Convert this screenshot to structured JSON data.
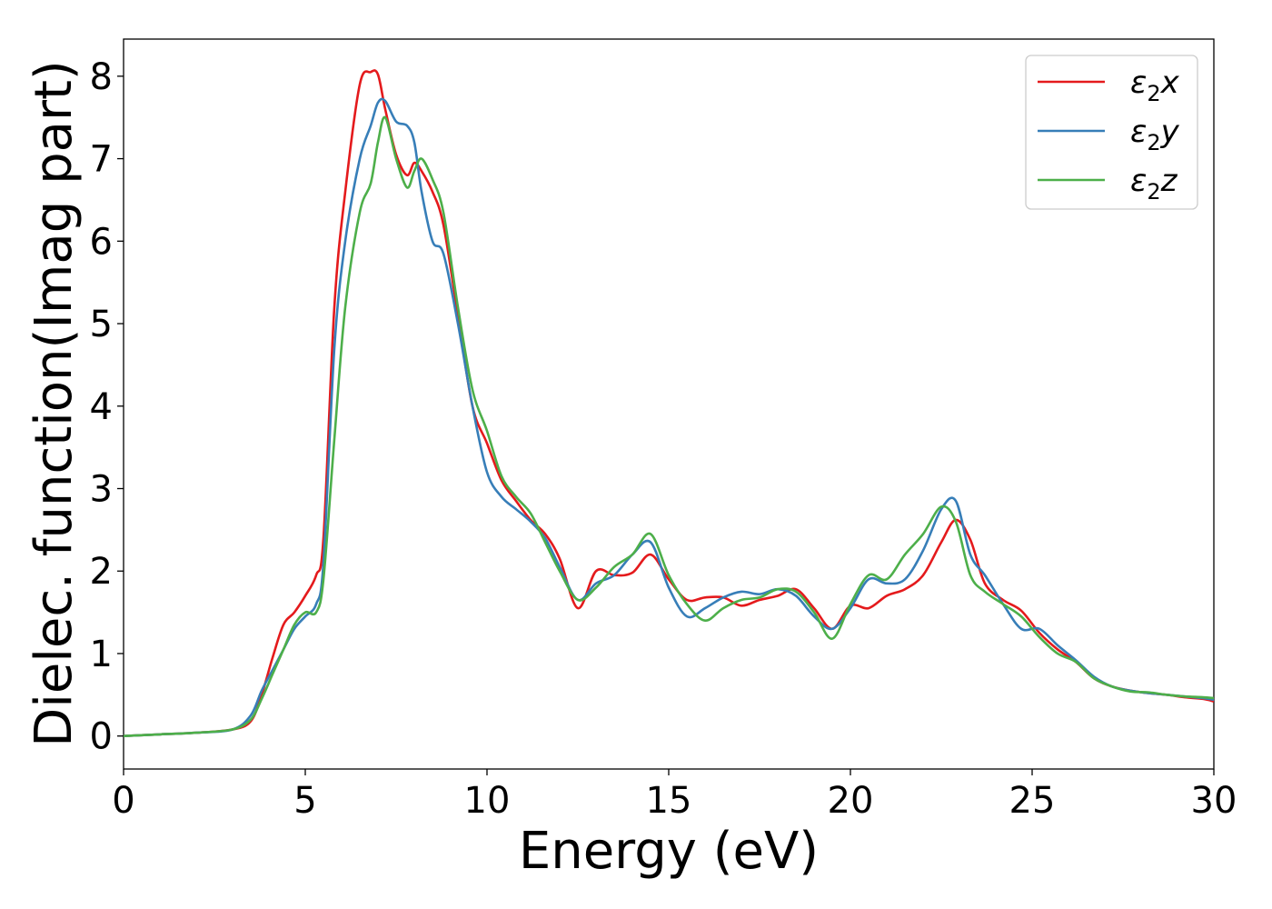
{
  "chart_data": {
    "type": "line",
    "xlabel": "Energy (eV)",
    "ylabel": "Dielec. function(Imag part)",
    "xlim": [
      0,
      30
    ],
    "ylim": [
      -0.4,
      8.45
    ],
    "xticks": [
      0,
      5,
      10,
      15,
      20,
      25,
      30
    ],
    "yticks": [
      0,
      1,
      2,
      3,
      4,
      5,
      6,
      7,
      8
    ],
    "grid": false,
    "legend_position": "top-right",
    "series": [
      {
        "name": "ε₂x",
        "legend_base": "ε",
        "legend_sub": "2",
        "legend_suffix": "x",
        "color": "#e41a1c",
        "x": [
          0,
          1,
          2,
          3,
          3.5,
          3.8,
          4.1,
          4.4,
          4.7,
          5.0,
          5.3,
          5.5,
          5.8,
          6.1,
          6.5,
          6.8,
          7.0,
          7.2,
          7.5,
          7.8,
          8.0,
          8.2,
          8.5,
          8.8,
          9.2,
          9.6,
          10.0,
          10.4,
          10.8,
          11.2,
          11.6,
          12.0,
          12.5,
          13.0,
          13.5,
          14.0,
          14.5,
          15.0,
          15.5,
          16.0,
          16.5,
          17.0,
          17.5,
          18.0,
          18.5,
          19.0,
          19.5,
          20.0,
          20.5,
          21.0,
          21.5,
          22.0,
          22.5,
          22.9,
          23.3,
          23.7,
          24.2,
          24.7,
          25.2,
          25.7,
          26.2,
          26.7,
          27.2,
          27.7,
          28.2,
          28.7,
          29.2,
          29.7,
          30.0
        ],
        "y": [
          0.0,
          0.02,
          0.04,
          0.08,
          0.18,
          0.5,
          0.95,
          1.35,
          1.5,
          1.7,
          1.95,
          2.4,
          5.2,
          6.6,
          7.9,
          8.05,
          8.02,
          7.6,
          7.05,
          6.8,
          6.95,
          6.85,
          6.6,
          6.2,
          5.1,
          4.0,
          3.55,
          3.1,
          2.85,
          2.62,
          2.45,
          2.15,
          1.55,
          2.0,
          1.95,
          1.98,
          2.2,
          1.9,
          1.65,
          1.68,
          1.68,
          1.58,
          1.65,
          1.7,
          1.78,
          1.55,
          1.3,
          1.58,
          1.55,
          1.7,
          1.78,
          1.95,
          2.35,
          2.62,
          2.38,
          1.85,
          1.65,
          1.52,
          1.25,
          1.05,
          0.9,
          0.7,
          0.6,
          0.55,
          0.52,
          0.5,
          0.47,
          0.45,
          0.42
        ]
      },
      {
        "name": "ε₂y",
        "legend_base": "ε",
        "legend_sub": "2",
        "legend_suffix": "y",
        "color": "#377eb8",
        "x": [
          0,
          1,
          2,
          3,
          3.5,
          3.8,
          4.1,
          4.4,
          4.7,
          5.0,
          5.3,
          5.5,
          5.8,
          6.1,
          6.5,
          6.8,
          7.0,
          7.2,
          7.5,
          7.8,
          8.0,
          8.2,
          8.5,
          8.8,
          9.2,
          9.6,
          10.0,
          10.4,
          10.8,
          11.2,
          11.6,
          12.0,
          12.5,
          13.0,
          13.5,
          14.0,
          14.5,
          15.0,
          15.5,
          16.0,
          16.5,
          17.0,
          17.5,
          18.0,
          18.5,
          19.0,
          19.5,
          20.0,
          20.5,
          21.0,
          21.5,
          22.0,
          22.5,
          22.9,
          23.3,
          23.7,
          24.2,
          24.7,
          25.2,
          25.7,
          26.2,
          26.7,
          27.2,
          27.7,
          28.2,
          28.7,
          29.2,
          29.7,
          30.0
        ],
        "y": [
          0.0,
          0.02,
          0.04,
          0.08,
          0.25,
          0.55,
          0.8,
          1.05,
          1.3,
          1.45,
          1.6,
          2.1,
          4.7,
          6.0,
          7.0,
          7.4,
          7.68,
          7.7,
          7.45,
          7.4,
          7.2,
          6.6,
          6.0,
          5.85,
          5.0,
          4.0,
          3.2,
          2.9,
          2.75,
          2.6,
          2.4,
          2.05,
          1.65,
          1.85,
          1.95,
          2.2,
          2.35,
          1.8,
          1.45,
          1.55,
          1.68,
          1.75,
          1.72,
          1.78,
          1.7,
          1.45,
          1.3,
          1.55,
          1.9,
          1.85,
          1.9,
          2.25,
          2.75,
          2.85,
          2.2,
          1.95,
          1.6,
          1.3,
          1.3,
          1.1,
          0.92,
          0.72,
          0.6,
          0.55,
          0.52,
          0.5,
          0.48,
          0.46,
          0.44
        ]
      },
      {
        "name": "ε₂z",
        "legend_base": "ε",
        "legend_sub": "2",
        "legend_suffix": "z",
        "color": "#4daf4a",
        "x": [
          0,
          1,
          2,
          3,
          3.5,
          3.8,
          4.1,
          4.4,
          4.7,
          5.0,
          5.3,
          5.5,
          5.8,
          6.1,
          6.5,
          6.8,
          7.0,
          7.2,
          7.5,
          7.8,
          8.0,
          8.2,
          8.5,
          8.8,
          9.2,
          9.6,
          10.0,
          10.4,
          10.8,
          11.2,
          11.6,
          12.0,
          12.5,
          13.0,
          13.5,
          14.0,
          14.5,
          15.0,
          15.5,
          16.0,
          16.5,
          17.0,
          17.5,
          18.0,
          18.5,
          19.0,
          19.5,
          20.0,
          20.5,
          21.0,
          21.5,
          22.0,
          22.5,
          22.9,
          23.3,
          23.7,
          24.2,
          24.7,
          25.2,
          25.7,
          26.2,
          26.7,
          27.2,
          27.7,
          28.2,
          28.7,
          29.2,
          29.7,
          30.0
        ],
        "y": [
          0.0,
          0.02,
          0.04,
          0.08,
          0.2,
          0.45,
          0.75,
          1.05,
          1.35,
          1.5,
          1.5,
          1.9,
          3.6,
          5.2,
          6.35,
          6.7,
          7.2,
          7.5,
          7.0,
          6.65,
          6.85,
          7.0,
          6.75,
          6.35,
          5.2,
          4.2,
          3.7,
          3.15,
          2.9,
          2.7,
          2.35,
          2.0,
          1.65,
          1.8,
          2.05,
          2.2,
          2.45,
          1.95,
          1.6,
          1.4,
          1.55,
          1.65,
          1.68,
          1.78,
          1.75,
          1.5,
          1.18,
          1.6,
          1.95,
          1.9,
          2.2,
          2.45,
          2.78,
          2.6,
          1.95,
          1.75,
          1.6,
          1.45,
          1.2,
          1.0,
          0.9,
          0.7,
          0.6,
          0.54,
          0.53,
          0.5,
          0.48,
          0.47,
          0.46
        ]
      }
    ]
  }
}
